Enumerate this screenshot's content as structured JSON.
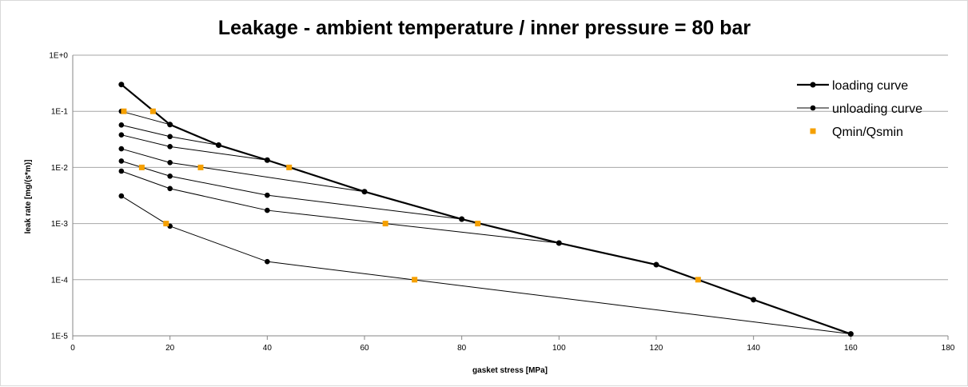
{
  "chart_data": {
    "type": "line",
    "title": "Leakage - ambient temperature / inner pressure = 80 bar",
    "xlabel": "gasket stress [MPa]",
    "ylabel": "leak rate [mg/(s*m)]",
    "xlim": [
      0,
      180
    ],
    "ylim": [
      1e-05,
      1
    ],
    "yscale": "log",
    "grid": "horizontal",
    "legend": "top-right",
    "x_ticks": [
      "0",
      "20",
      "40",
      "60",
      "80",
      "100",
      "120",
      "140",
      "160",
      "180"
    ],
    "y_ticks": [
      "1E+0",
      "1E-1",
      "1E-2",
      "1E-3",
      "1E-4",
      "1E-5"
    ],
    "legend_entries": [
      "loading curve",
      "unloading curve",
      "Qmin/Qsmin"
    ],
    "loading_curve": {
      "name": "loading curve",
      "x": [
        10,
        20,
        30,
        40,
        60,
        80,
        100,
        120,
        140,
        160
      ],
      "y": [
        0.3,
        0.058,
        0.025,
        0.0135,
        0.0037,
        0.0012,
        0.00045,
        0.000185,
        4.4e-05,
        1.08e-05
      ]
    },
    "unloading_curves": [
      {
        "x": [
          20,
          10
        ],
        "y": [
          0.058,
          0.1
        ]
      },
      {
        "x": [
          30,
          20,
          10
        ],
        "y": [
          0.025,
          0.0355,
          0.057
        ]
      },
      {
        "x": [
          40,
          20,
          10
        ],
        "y": [
          0.0135,
          0.0235,
          0.038
        ]
      },
      {
        "x": [
          60,
          20,
          10
        ],
        "y": [
          0.0037,
          0.0122,
          0.0215
        ]
      },
      {
        "x": [
          80,
          40,
          20,
          10
        ],
        "y": [
          0.0012,
          0.0032,
          0.007,
          0.013
        ]
      },
      {
        "x": [
          100,
          40,
          20,
          10
        ],
        "y": [
          0.00045,
          0.00172,
          0.0042,
          0.0086
        ]
      },
      {
        "x": [
          160,
          40,
          20,
          10
        ],
        "y": [
          1.08e-05,
          0.00021,
          0.0009,
          0.0031
        ]
      }
    ],
    "qmin_points": {
      "name": "Qmin/Qsmin",
      "x": [
        10.5,
        16.5,
        44.5,
        83.3,
        128.6,
        14.2,
        26.3,
        64.3,
        19.2,
        70.3
      ],
      "y": [
        0.1,
        0.1,
        0.01,
        0.001,
        0.0001,
        0.01,
        0.01,
        0.001,
        0.001,
        0.0001
      ]
    },
    "colors": {
      "line": "#000000",
      "marker": "#000000",
      "qmin": "#f5a000",
      "grid": "#a6a6a6"
    }
  }
}
